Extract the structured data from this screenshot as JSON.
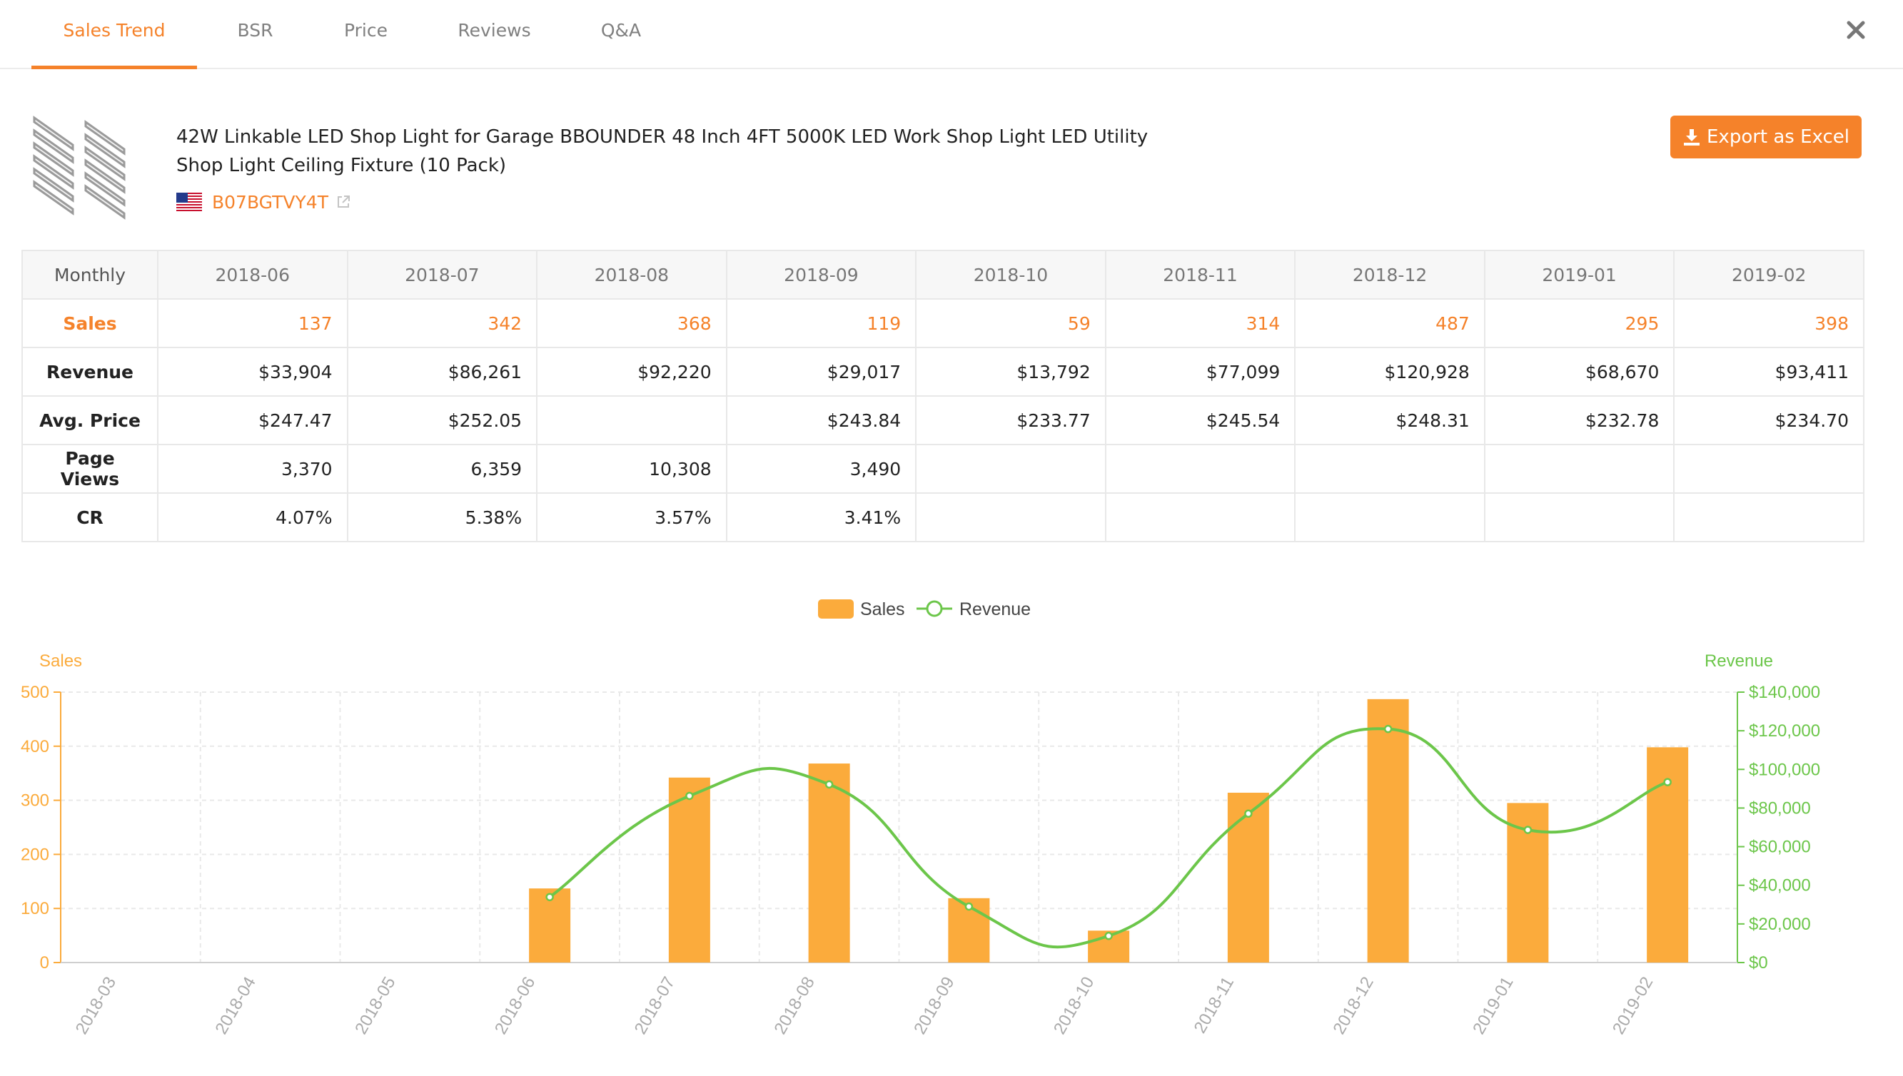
{
  "tabs": [
    {
      "label": "Sales Trend",
      "active": true
    },
    {
      "label": "BSR",
      "active": false
    },
    {
      "label": "Price",
      "active": false
    },
    {
      "label": "Reviews",
      "active": false
    },
    {
      "label": "Q&A",
      "active": false
    }
  ],
  "close_icon": "close-icon",
  "product": {
    "title": "42W Linkable LED Shop Light for Garage BBOUNDER 48 Inch 4FT 5000K LED Work Shop Light LED Utility Shop Light Ceiling Fixture (10 Pack)",
    "asin": "B07BGTVY4T",
    "marketplace_icon": "us-flag-icon"
  },
  "export_button": {
    "label": "Export as Excel",
    "icon": "download-icon"
  },
  "colors": {
    "accent": "#f5822a",
    "sales_bar": "#fbab3c",
    "revenue_line": "#6cc64a",
    "grid": "#e9e9e9"
  },
  "table": {
    "corner": "Monthly",
    "months": [
      "2018-06",
      "2018-07",
      "2018-08",
      "2018-09",
      "2018-10",
      "2018-11",
      "2018-12",
      "2019-01",
      "2019-02"
    ],
    "rows": [
      {
        "label": "Sales",
        "values": [
          "137",
          "342",
          "368",
          "119",
          "59",
          "314",
          "487",
          "295",
          "398"
        ]
      },
      {
        "label": "Revenue",
        "values": [
          "$33,904",
          "$86,261",
          "$92,220",
          "$29,017",
          "$13,792",
          "$77,099",
          "$120,928",
          "$68,670",
          "$93,411"
        ]
      },
      {
        "label": "Avg. Price",
        "values": [
          "$247.47",
          "$252.05",
          "",
          "$243.84",
          "$233.77",
          "$245.54",
          "$248.31",
          "$232.78",
          "$234.70"
        ]
      },
      {
        "label": "Page Views",
        "values": [
          "3,370",
          "6,359",
          "10,308",
          "3,490",
          "",
          "",
          "",
          "",
          ""
        ]
      },
      {
        "label": "CR",
        "values": [
          "4.07%",
          "5.38%",
          "3.57%",
          "3.41%",
          "",
          "",
          "",
          "",
          ""
        ]
      }
    ]
  },
  "chart_data": {
    "type": "bar",
    "categories": [
      "2018-03",
      "2018-04",
      "2018-05",
      "2018-06",
      "2018-07",
      "2018-08",
      "2018-09",
      "2018-10",
      "2018-11",
      "2018-12",
      "2019-01",
      "2019-02"
    ],
    "series": [
      {
        "name": "Sales",
        "type": "bar",
        "axis": "left",
        "values": [
          null,
          null,
          null,
          137,
          342,
          368,
          119,
          59,
          314,
          487,
          295,
          398
        ]
      },
      {
        "name": "Revenue",
        "type": "line",
        "smooth": true,
        "axis": "right",
        "values": [
          null,
          null,
          null,
          33904,
          86261,
          92220,
          29017,
          13792,
          77099,
          120928,
          68670,
          93411
        ]
      }
    ],
    "ylabel": "Sales",
    "y2label": "Revenue",
    "ylim": [
      0,
      500
    ],
    "yticks": [
      "0",
      "100",
      "200",
      "300",
      "400",
      "500"
    ],
    "y2lim": [
      0,
      140000
    ],
    "y2ticks": [
      "$0",
      "$20,000",
      "$40,000",
      "$60,000",
      "$80,000",
      "$100,000",
      "$120,000",
      "$140,000"
    ],
    "legend": {
      "placement": "top-center",
      "items": [
        "Sales",
        "Revenue"
      ]
    },
    "grid": true
  }
}
